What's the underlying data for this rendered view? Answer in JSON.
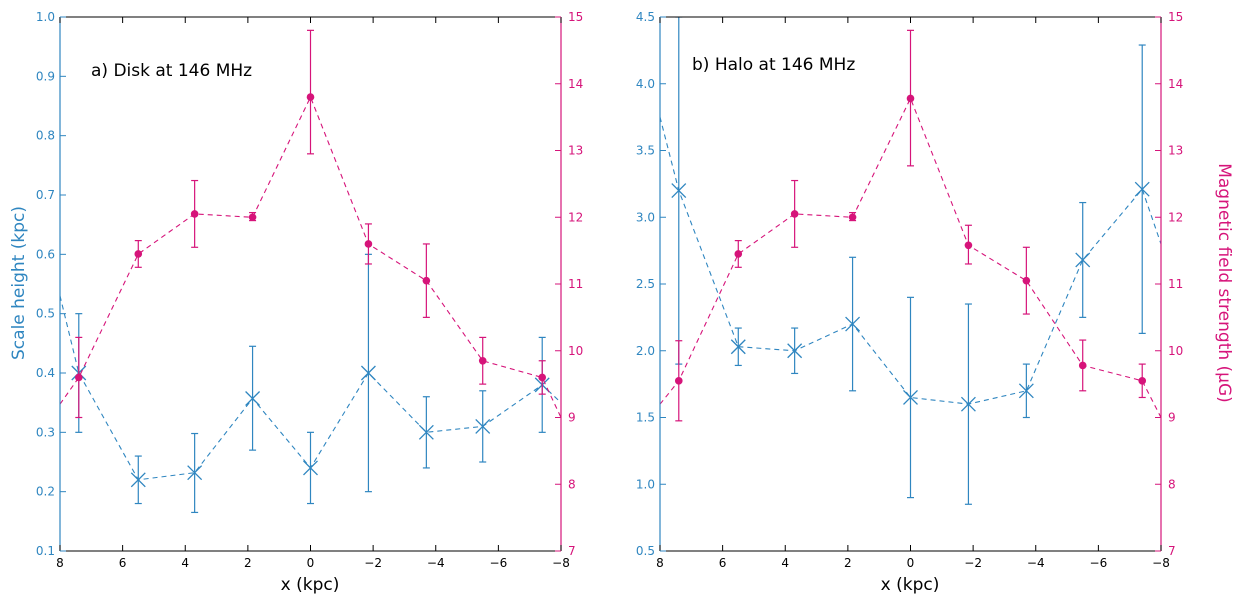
{
  "colors": {
    "scale": "#2f86c0",
    "field": "#d6147a",
    "axes": "#000000"
  },
  "labels": {
    "xlabel": "x (kpc)",
    "ylabel_left": "Scale height (kpc)",
    "ylabel_right": "Magnetic field strength (μG)"
  },
  "chart_data": [
    {
      "type": "scatter",
      "title": "a) Disk at 146 MHz",
      "xlabel": "x (kpc)",
      "ylabel": "Scale height (kpc)",
      "y2label": "Magnetic field strength (μG)",
      "xlim": [
        8,
        -8
      ],
      "ylim": [
        0.1,
        1.0
      ],
      "y2lim": [
        7,
        15
      ],
      "xticks": [
        8,
        6,
        4,
        2,
        0,
        -2,
        -4,
        -6,
        -8
      ],
      "yticks": [
        0.1,
        0.2,
        0.3,
        0.4,
        0.5,
        0.6,
        0.7,
        0.8,
        0.9,
        1.0
      ],
      "y2ticks": [
        7,
        8,
        9,
        10,
        11,
        12,
        13,
        14,
        15
      ],
      "grid": false,
      "scale_height": {
        "axis": "left",
        "marker": "x",
        "points": [
          {
            "x": 7.4,
            "y": 0.4,
            "lo": 0.3,
            "hi": 0.5
          },
          {
            "x": 5.5,
            "y": 0.22,
            "lo": 0.18,
            "hi": 0.26
          },
          {
            "x": 3.7,
            "y": 0.232,
            "lo": 0.165,
            "hi": 0.298
          },
          {
            "x": 1.85,
            "y": 0.357,
            "lo": 0.27,
            "hi": 0.445
          },
          {
            "x": 0.0,
            "y": 0.24,
            "lo": 0.18,
            "hi": 0.3
          },
          {
            "x": -1.85,
            "y": 0.4,
            "lo": 0.2,
            "hi": 0.6
          },
          {
            "x": -3.7,
            "y": 0.3,
            "lo": 0.24,
            "hi": 0.36
          },
          {
            "x": -5.5,
            "y": 0.31,
            "lo": 0.25,
            "hi": 0.37
          },
          {
            "x": -7.4,
            "y": 0.38,
            "lo": 0.3,
            "hi": 0.46
          }
        ],
        "line_start": {
          "x": 8.0,
          "y": 0.53
        },
        "line_end": {
          "x": -8.0,
          "y": 0.35
        }
      },
      "field_strength": {
        "axis": "right",
        "marker": "o",
        "points": [
          {
            "x": 7.4,
            "y": 9.6,
            "lo": 9.0,
            "hi": 10.2
          },
          {
            "x": 5.5,
            "y": 11.45,
            "lo": 11.25,
            "hi": 11.65
          },
          {
            "x": 3.7,
            "y": 12.05,
            "lo": 11.55,
            "hi": 12.55
          },
          {
            "x": 1.85,
            "y": 12.0,
            "lo": 11.95,
            "hi": 12.07
          },
          {
            "x": 0.0,
            "y": 13.8,
            "lo": 12.95,
            "hi": 14.8
          },
          {
            "x": -1.85,
            "y": 11.6,
            "lo": 11.3,
            "hi": 11.9
          },
          {
            "x": -3.7,
            "y": 11.05,
            "lo": 10.5,
            "hi": 11.6
          },
          {
            "x": -5.5,
            "y": 9.85,
            "lo": 9.5,
            "hi": 10.2
          },
          {
            "x": -7.4,
            "y": 9.6,
            "lo": 9.35,
            "hi": 9.85
          }
        ],
        "line_start": {
          "x": 8.0,
          "y": 9.2
        },
        "line_end": {
          "x": -8.0,
          "y": 9.0
        }
      }
    },
    {
      "type": "scatter",
      "title": "b) Halo at 146 MHz",
      "xlabel": "x (kpc)",
      "ylabel": "Scale height (kpc)",
      "y2label": "Magnetic field strength (μG)",
      "xlim": [
        8,
        -8
      ],
      "ylim": [
        0.5,
        4.5
      ],
      "y2lim": [
        7,
        15
      ],
      "xticks": [
        8,
        6,
        4,
        2,
        0,
        -2,
        -4,
        -6,
        -8
      ],
      "yticks": [
        0.5,
        1.0,
        1.5,
        2.0,
        2.5,
        3.0,
        3.5,
        4.0,
        4.5
      ],
      "y2ticks": [
        7,
        8,
        9,
        10,
        11,
        12,
        13,
        14,
        15
      ],
      "grid": false,
      "scale_height": {
        "axis": "left",
        "marker": "x",
        "points": [
          {
            "x": 7.4,
            "y": 3.2,
            "lo": 1.9,
            "hi": 4.5
          },
          {
            "x": 5.5,
            "y": 2.03,
            "lo": 1.89,
            "hi": 2.17
          },
          {
            "x": 3.7,
            "y": 2.0,
            "lo": 1.83,
            "hi": 2.17
          },
          {
            "x": 1.85,
            "y": 2.2,
            "lo": 1.7,
            "hi": 2.7
          },
          {
            "x": 0.0,
            "y": 1.65,
            "lo": 0.9,
            "hi": 2.4
          },
          {
            "x": -1.85,
            "y": 1.6,
            "lo": 0.85,
            "hi": 2.35
          },
          {
            "x": -3.7,
            "y": 1.7,
            "lo": 1.5,
            "hi": 1.9
          },
          {
            "x": -5.5,
            "y": 2.68,
            "lo": 2.25,
            "hi": 3.11
          },
          {
            "x": -7.4,
            "y": 3.21,
            "lo": 2.13,
            "hi": 4.29
          }
        ],
        "line_start": {
          "x": 8.0,
          "y": 3.75
        },
        "line_end": {
          "x": -8.0,
          "y": 2.8
        }
      },
      "field_strength": {
        "axis": "right",
        "marker": "o",
        "points": [
          {
            "x": 7.4,
            "y": 9.55,
            "lo": 8.95,
            "hi": 10.15
          },
          {
            "x": 5.5,
            "y": 11.45,
            "lo": 11.25,
            "hi": 11.65
          },
          {
            "x": 3.7,
            "y": 12.05,
            "lo": 11.55,
            "hi": 12.55
          },
          {
            "x": 1.85,
            "y": 12.0,
            "lo": 11.95,
            "hi": 12.07
          },
          {
            "x": 0.0,
            "y": 13.78,
            "lo": 12.77,
            "hi": 14.8
          },
          {
            "x": -1.85,
            "y": 11.58,
            "lo": 11.3,
            "hi": 11.88
          },
          {
            "x": -3.7,
            "y": 11.05,
            "lo": 10.55,
            "hi": 11.55
          },
          {
            "x": -5.5,
            "y": 9.78,
            "lo": 9.4,
            "hi": 10.16
          },
          {
            "x": -7.4,
            "y": 9.55,
            "lo": 9.3,
            "hi": 9.8
          }
        ],
        "line_start": {
          "x": 8.0,
          "y": 9.2
        },
        "line_end": {
          "x": -8.0,
          "y": 9.0
        }
      }
    }
  ]
}
